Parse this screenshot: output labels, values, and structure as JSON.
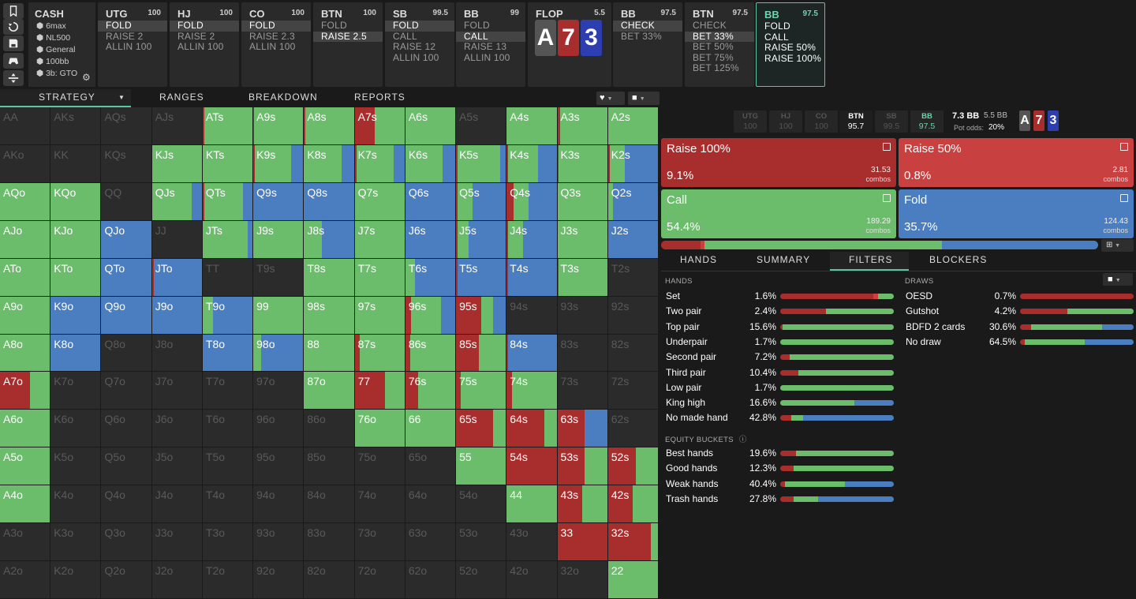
{
  "colors": {
    "raise_big": "#a82e2e",
    "raise_small": "#c94040",
    "call": "#6bbd6b",
    "fold": "#4a7ec0",
    "check": "#6bbd6b",
    "bet_accent": "#5cc6a0"
  },
  "sidebar": {
    "buttons": [
      {
        "name": "bookmark-icon"
      },
      {
        "name": "history-icon"
      },
      {
        "name": "save-icon"
      },
      {
        "name": "gamepad-icon"
      },
      {
        "name": "split-icon"
      }
    ]
  },
  "cash": {
    "title": "CASH",
    "items": [
      "6max",
      "NL500",
      "General",
      "100bb",
      "3b: GTO"
    ]
  },
  "panels": [
    {
      "name": "UTG",
      "stack": "100",
      "actions": [
        "FOLD",
        "RAISE 2",
        "ALLIN 100"
      ],
      "sel": 0
    },
    {
      "name": "HJ",
      "stack": "100",
      "actions": [
        "FOLD",
        "RAISE 2",
        "ALLIN 100"
      ],
      "sel": 0
    },
    {
      "name": "CO",
      "stack": "100",
      "actions": [
        "FOLD",
        "RAISE 2.3",
        "ALLIN 100"
      ],
      "sel": 0
    },
    {
      "name": "BTN",
      "stack": "100",
      "actions": [
        "FOLD",
        "RAISE 2.5"
      ],
      "sel": 1
    },
    {
      "name": "SB",
      "stack": "99.5",
      "actions": [
        "FOLD",
        "CALL",
        "RAISE 12",
        "ALLIN 100"
      ],
      "sel": 0
    },
    {
      "name": "BB",
      "stack": "99",
      "actions": [
        "FOLD",
        "CALL",
        "RAISE 13",
        "ALLIN 100"
      ],
      "sel": 1
    },
    {
      "name": "FLOP",
      "stack": "5.5",
      "actions": [],
      "sel": -1
    },
    {
      "name": "BB",
      "stack": "97.5",
      "actions": [
        "CHECK",
        "BET 33%"
      ],
      "sel": 0
    },
    {
      "name": "BTN",
      "stack": "97.5",
      "actions": [
        "CHECK",
        "BET 33%",
        "BET 50%",
        "BET 75%",
        "BET 125%"
      ],
      "sel": 1
    },
    {
      "name": "BB",
      "stack": "97.5",
      "actions": [
        "FOLD",
        "CALL",
        "RAISE 50%",
        "RAISE 100%"
      ],
      "sel": -1
    }
  ],
  "flop_cards": [
    {
      "rank": "A",
      "color": "#555"
    },
    {
      "rank": "7",
      "color": "#a82e2e"
    },
    {
      "rank": "3",
      "color": "#2d3fb0"
    }
  ],
  "tabs": [
    "STRATEGY",
    "RANGES",
    "BREAKDOWN",
    "REPORTS"
  ],
  "positions": [
    {
      "name": "UTG",
      "stack": "100"
    },
    {
      "name": "HJ",
      "stack": "100"
    },
    {
      "name": "CO",
      "stack": "100"
    },
    {
      "name": "BTN",
      "stack": "95.7"
    },
    {
      "name": "SB",
      "stack": "99.5"
    },
    {
      "name": "BB",
      "stack": "97.5"
    }
  ],
  "pot": {
    "main": "7.3 BB",
    "sub": "5.5 BB",
    "odds_label": "Pot odds:",
    "odds": "20%"
  },
  "actions": [
    {
      "name": "Raise 100%",
      "pct": "9.1%",
      "combos": "31.53",
      "unit": "combos"
    },
    {
      "name": "Raise 50%",
      "pct": "0.8%",
      "combos": "2.81",
      "unit": "combos"
    },
    {
      "name": "Call",
      "pct": "54.4%",
      "combos": "189.29",
      "unit": "combos"
    },
    {
      "name": "Fold",
      "pct": "35.7%",
      "combos": "124.43",
      "unit": "combos"
    }
  ],
  "summary_bar": [
    9.1,
    0.8,
    54.4,
    35.7
  ],
  "filter_tabs": [
    "HANDS",
    "SUMMARY",
    "FILTERS",
    "BLOCKERS"
  ],
  "hands_title": "HANDS",
  "hands": [
    {
      "name": "Set",
      "pct": "1.6%",
      "dist": [
        82,
        4,
        14,
        0
      ]
    },
    {
      "name": "Two pair",
      "pct": "2.4%",
      "dist": [
        40,
        0,
        60,
        0
      ]
    },
    {
      "name": "Top pair",
      "pct": "15.6%",
      "dist": [
        2,
        0,
        98,
        0
      ]
    },
    {
      "name": "Underpair",
      "pct": "1.7%",
      "dist": [
        0,
        0,
        100,
        0
      ]
    },
    {
      "name": "Second pair",
      "pct": "7.2%",
      "dist": [
        8,
        0,
        92,
        0
      ]
    },
    {
      "name": "Third pair",
      "pct": "10.4%",
      "dist": [
        16,
        0,
        84,
        0
      ]
    },
    {
      "name": "Low pair",
      "pct": "1.7%",
      "dist": [
        0,
        0,
        100,
        0
      ]
    },
    {
      "name": "King high",
      "pct": "16.6%",
      "dist": [
        0,
        0,
        65,
        35
      ]
    },
    {
      "name": "No made hand",
      "pct": "42.8%",
      "dist": [
        10,
        0,
        10,
        80
      ]
    }
  ],
  "equity_title": "EQUITY BUCKETS",
  "equity": [
    {
      "name": "Best hands",
      "pct": "19.6%",
      "dist": [
        14,
        0,
        86,
        0
      ]
    },
    {
      "name": "Good hands",
      "pct": "12.3%",
      "dist": [
        12,
        0,
        88,
        0
      ]
    },
    {
      "name": "Weak hands",
      "pct": "40.4%",
      "dist": [
        4,
        0,
        53,
        43
      ]
    },
    {
      "name": "Trash hands",
      "pct": "27.8%",
      "dist": [
        12,
        0,
        21,
        67
      ]
    }
  ],
  "draws_title": "DRAWS",
  "draws": [
    {
      "name": "OESD",
      "pct": "0.7%",
      "dist": [
        100,
        0,
        0,
        0
      ]
    },
    {
      "name": "Gutshot",
      "pct": "4.2%",
      "dist": [
        42,
        0,
        58,
        0
      ]
    },
    {
      "name": "BDFD 2 cards",
      "pct": "30.6%",
      "dist": [
        10,
        0,
        62,
        28
      ]
    },
    {
      "name": "No draw",
      "pct": "64.5%",
      "dist": [
        4,
        0,
        53,
        43
      ]
    }
  ],
  "grid": [
    [
      "AA|e",
      "AKs|e",
      "AQs|e",
      "AJs|e",
      "ATs|4,0,96,0",
      "A9s|2,0,98,0",
      "A8s|2,0,98,0",
      "A7s|40,0,60,0",
      "A6s|0,0,100,0",
      "A5s|e",
      "A4s|0,0,100,0",
      "A3s|6,0,94,0",
      "A2s|0,0,100,0"
    ],
    [
      "AKo|e",
      "KK|e",
      "KQs|e",
      "KJs|0,0,100,0",
      "KTs|0,0,100,0",
      "K9s|3,0,72,25",
      "K8s|0,0,75,25",
      "K7s|3,0,75,22",
      "K6s|0,0,75,25",
      "K5s|3,0,85,12",
      "K4s|3,0,60,37",
      "K3s|3,0,97,0",
      "K2s|3,0,30,67"
    ],
    [
      "AQo|0,0,100,0",
      "KQo|0,0,100,0",
      "QQ|e",
      "QJs|0,0,80,20",
      "QTs|3,0,78,19",
      "Q9s|0,0,0,100",
      "Q8s|0,0,0,100",
      "Q7s|0,0,100,0",
      "Q6s|0,0,0,100",
      "Q5s|3,0,30,67",
      "Q4s|14,0,30,56",
      "Q3s|0,0,100,0",
      "Q2s|0,0,10,90"
    ],
    [
      "AJo|0,0,100,0",
      "KJo|0,0,100,0",
      "QJo|0,0,0,100",
      "JJ|e",
      "JTs|0,0,90,10",
      "J9s|0,0,100,0",
      "J8s|0,0,35,65",
      "J7s|0,0,100,0",
      "J6s|0,0,0,100",
      "J5s|3,0,22,75",
      "J4s|3,0,30,67",
      "J3s|0,0,100,0",
      "J2s|0,0,0,100"
    ],
    [
      "ATo|0,0,100,0",
      "KTo|0,0,100,0",
      "QTo|0,0,0,100",
      "JTo|3,0,0,97",
      "TT|e",
      "T9s|e",
      "T8s|0,0,100,0",
      "T7s|0,0,100,0",
      "T6s|0,0,20,80",
      "T5s|3,0,0,97",
      "T4s|3,0,0,97",
      "T3s|3,0,97,0",
      "T2s|e"
    ],
    [
      "A9o|0,0,100,0",
      "K9o|0,0,0,100",
      "Q9o|0,0,0,100",
      "J9o|0,0,0,100",
      "T9o|0,0,20,80",
      "99|0,0,100,0",
      "98s|0,0,100,0",
      "97s|0,0,100,0",
      "96s|12,0,60,28",
      "95s|50,0,25,25",
      "94s|e",
      "93s|e",
      "92s|e"
    ],
    [
      "A8o|0,0,100,0",
      "K8o|0,0,0,100",
      "Q8o|e",
      "J8o|e",
      "T8o|0,0,0,100",
      "98o|0,0,15,85",
      "88|0,0,100,0",
      "87s|10,0,90,0",
      "86s|10,0,90,0",
      "85s|45,0,55,0",
      "84s|3,0,0,97",
      "83s|e",
      "82s|e"
    ],
    [
      "A7o|60,0,40,0",
      "K7o|e",
      "Q7o|e",
      "J7o|e",
      "T7o|e",
      "97o|e",
      "87o|0,0,100,0",
      "77|60,0,40,0",
      "76s|25,0,75,0",
      "75s|10,0,90,0",
      "74s|10,0,90,0",
      "73s|e",
      "72s|e"
    ],
    [
      "A6o|0,0,100,0",
      "K6o|e",
      "Q6o|e",
      "J6o|e",
      "T6o|e",
      "96o|e",
      "86o|e",
      "76o|0,0,100,0",
      "66|0,0,100,0",
      "65s|75,0,25,0",
      "64s|75,0,25,0",
      "63s|55,0,0,45",
      "62s|e"
    ],
    [
      "A5o|0,0,100,0",
      "K5o|e",
      "Q5o|e",
      "J5o|e",
      "T5o|e",
      "95o|e",
      "85o|e",
      "75o|e",
      "65o|e",
      "55|0,0,100,0",
      "54s|100,0,0,0",
      "53s|55,0,45,0",
      "52s|55,0,45,0"
    ],
    [
      "A4o|0,0,100,0",
      "K4o|e",
      "Q4o|e",
      "J4o|e",
      "T4o|e",
      "94o|e",
      "84o|e",
      "74o|e",
      "64o|e",
      "54o|e",
      "44|0,0,100,0",
      "43s|50,0,50,0",
      "42s|50,0,50,0"
    ],
    [
      "A3o|e",
      "K3o|e",
      "Q3o|e",
      "J3o|e",
      "T3o|e",
      "93o|e",
      "83o|e",
      "73o|e",
      "63o|e",
      "53o|e",
      "43o|e",
      "33|100,0,0,0",
      "32s|85,0,15,0"
    ],
    [
      "A2o|e",
      "K2o|e",
      "Q2o|e",
      "J2o|e",
      "T2o|e",
      "92o|e",
      "82o|e",
      "72o|e",
      "62o|e",
      "52o|e",
      "42o|e",
      "32o|e",
      "22|0,0,100,0"
    ]
  ]
}
